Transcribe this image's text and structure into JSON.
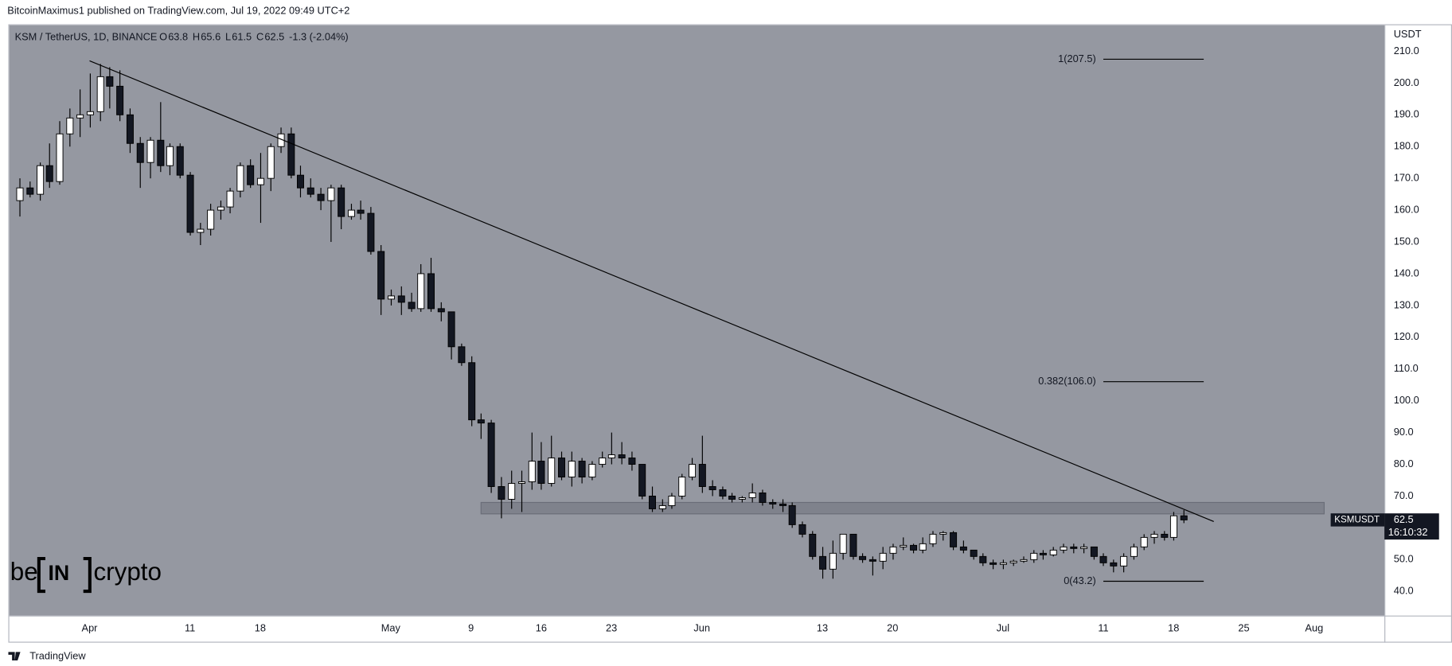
{
  "chart_data": {
    "type": "candlestick",
    "header": "BitcoinMaximus1 published on TradingView.com, Jul 19, 2022 09:49 UTC+2",
    "symbol": "KSM / TetherUS, 1D, BINANCE",
    "legend_keys": [
      "O",
      "H",
      "L",
      "C"
    ],
    "change": "-1.3 (-2.04%)",
    "axis_unit": "USDT",
    "ticker": "KSMUSDT",
    "countdown": "16:10:32",
    "watermark": [
      "be",
      "IN",
      "crypto"
    ],
    "footer": "TradingView",
    "background": "#9598a1",
    "up_color": "#ffffff",
    "down_color": "#131722",
    "wick_color": "#000000",
    "x": [
      "2022-03-25",
      "2022-03-26",
      "2022-03-27",
      "2022-03-28",
      "2022-03-29",
      "2022-03-30",
      "2022-03-31",
      "2022-04-01",
      "2022-04-02",
      "2022-04-03",
      "2022-04-04",
      "2022-04-05",
      "2022-04-06",
      "2022-04-07",
      "2022-04-08",
      "2022-04-09",
      "2022-04-10",
      "2022-04-11",
      "2022-04-12",
      "2022-04-13",
      "2022-04-14",
      "2022-04-15",
      "2022-04-16",
      "2022-04-17",
      "2022-04-18",
      "2022-04-19",
      "2022-04-20",
      "2022-04-21",
      "2022-04-22",
      "2022-04-23",
      "2022-04-24",
      "2022-04-25",
      "2022-04-26",
      "2022-04-27",
      "2022-04-28",
      "2022-04-29",
      "2022-04-30",
      "2022-05-01",
      "2022-05-02",
      "2022-05-03",
      "2022-05-04",
      "2022-05-05",
      "2022-05-06",
      "2022-05-07",
      "2022-05-08",
      "2022-05-09",
      "2022-05-10",
      "2022-05-11",
      "2022-05-12",
      "2022-05-13",
      "2022-05-14",
      "2022-05-15",
      "2022-05-16",
      "2022-05-17",
      "2022-05-18",
      "2022-05-19",
      "2022-05-20",
      "2022-05-21",
      "2022-05-22",
      "2022-05-23",
      "2022-05-24",
      "2022-05-25",
      "2022-05-26",
      "2022-05-27",
      "2022-05-28",
      "2022-05-29",
      "2022-05-30",
      "2022-05-31",
      "2022-06-01",
      "2022-06-02",
      "2022-06-03",
      "2022-06-04",
      "2022-06-05",
      "2022-06-06",
      "2022-06-07",
      "2022-06-08",
      "2022-06-09",
      "2022-06-10",
      "2022-06-11",
      "2022-06-12",
      "2022-06-13",
      "2022-06-14",
      "2022-06-15",
      "2022-06-16",
      "2022-06-17",
      "2022-06-18",
      "2022-06-19",
      "2022-06-20",
      "2022-06-21",
      "2022-06-22",
      "2022-06-23",
      "2022-06-24",
      "2022-06-25",
      "2022-06-26",
      "2022-06-27",
      "2022-06-28",
      "2022-06-29",
      "2022-06-30",
      "2022-07-01",
      "2022-07-02",
      "2022-07-03",
      "2022-07-04",
      "2022-07-05",
      "2022-07-06",
      "2022-07-07",
      "2022-07-08",
      "2022-07-09",
      "2022-07-10",
      "2022-07-11",
      "2022-07-12",
      "2022-07-13",
      "2022-07-14",
      "2022-07-15",
      "2022-07-16",
      "2022-07-17",
      "2022-07-18",
      "2022-07-19"
    ],
    "open": [
      163,
      167,
      165,
      174,
      169,
      184,
      189,
      190,
      191,
      202,
      199,
      190,
      181,
      175,
      182,
      174,
      180,
      171,
      153,
      154,
      160,
      161,
      166,
      174,
      168,
      170,
      180,
      184,
      171,
      167,
      165,
      163,
      167,
      158,
      160,
      159,
      147,
      132,
      133,
      131,
      129,
      140,
      129,
      128,
      117,
      112,
      94,
      93,
      73,
      69,
      74,
      74.5,
      81,
      74,
      82,
      76,
      81,
      76,
      80,
      82,
      83,
      82,
      80,
      70,
      66,
      67,
      70,
      76,
      80,
      73,
      72,
      70,
      69,
      69.5,
      71,
      68,
      67.5,
      67,
      61,
      58,
      51,
      47,
      52,
      58,
      51,
      50,
      49.5,
      52,
      54,
      54.5,
      53,
      55,
      58,
      58.5,
      54,
      53,
      51,
      49,
      48.5,
      49,
      49.5,
      50,
      52,
      51.5,
      53,
      54,
      53.5,
      54,
      51,
      49,
      48,
      51,
      54,
      57,
      58,
      57,
      63.8
    ],
    "high": [
      170,
      169,
      175,
      181,
      188,
      192,
      198,
      203,
      206,
      205,
      204,
      192,
      183,
      183,
      194,
      181,
      181,
      172,
      156,
      162,
      163,
      167,
      175,
      176,
      178,
      181,
      186,
      186,
      174,
      170,
      167,
      168,
      168,
      162,
      163,
      161,
      149,
      135,
      136,
      134,
      143,
      145,
      131,
      128,
      118,
      114,
      96,
      94,
      76,
      78,
      78,
      90,
      87,
      89,
      84,
      84,
      82,
      81,
      84,
      90,
      87,
      84,
      80,
      73,
      69,
      71,
      77,
      82,
      89,
      75,
      73,
      71,
      70,
      74,
      72,
      69,
      69,
      68,
      62,
      59,
      54,
      56,
      58,
      58,
      52,
      51,
      54,
      55,
      57,
      55,
      57,
      59,
      59,
      59,
      56,
      53,
      52,
      50,
      50,
      50,
      51,
      53,
      53,
      54,
      55,
      55,
      55,
      54,
      52,
      50,
      52,
      55,
      58,
      59,
      59,
      65,
      65.6
    ],
    "low": [
      158,
      164,
      163,
      167,
      168,
      180,
      183,
      186,
      188,
      192,
      188,
      178,
      167,
      170,
      172,
      171,
      170,
      152,
      149,
      152,
      157,
      159,
      164,
      167,
      156,
      166,
      178,
      170,
      164,
      164,
      160,
      150,
      154,
      157,
      157,
      146,
      127,
      130,
      127,
      128,
      128,
      128,
      125,
      113,
      111,
      92,
      88,
      71,
      63,
      66,
      65,
      72,
      72,
      73,
      75,
      73,
      74,
      75,
      79,
      80,
      80,
      78,
      69,
      65,
      65,
      66,
      69,
      75,
      71,
      70,
      69,
      68,
      68,
      68,
      67,
      66,
      65,
      60,
      57,
      50,
      44,
      44,
      50,
      50,
      49,
      45,
      47,
      50,
      53,
      52,
      52,
      54,
      56,
      53,
      52,
      50,
      48,
      47,
      47,
      48,
      49,
      49,
      50,
      51,
      52,
      52,
      52,
      50,
      48,
      46,
      46,
      50,
      53,
      55,
      56,
      56,
      61.5
    ],
    "close": [
      167,
      165,
      174,
      169,
      184,
      189,
      190,
      191,
      202,
      199,
      190,
      181,
      175,
      182,
      174,
      180,
      171,
      153,
      154,
      160,
      161,
      166,
      174,
      168,
      170,
      180,
      184,
      171,
      167,
      165,
      163,
      167,
      158,
      160,
      159,
      147,
      132,
      133,
      131,
      129,
      140,
      129,
      128,
      117,
      112,
      94,
      93,
      73,
      69,
      74,
      74.5,
      81,
      74,
      82,
      76,
      81,
      76,
      80,
      82,
      83,
      82,
      80,
      70,
      66,
      67,
      70,
      76,
      80,
      73,
      72,
      70,
      69,
      69.5,
      71,
      68,
      67.5,
      67,
      61,
      58,
      51,
      47,
      52,
      58,
      51,
      50,
      49.5,
      52,
      54,
      54.5,
      53,
      55,
      58,
      58.5,
      54,
      53,
      51,
      49,
      48.5,
      49,
      49.5,
      50,
      52,
      51.5,
      53,
      54,
      53.5,
      54,
      51,
      49,
      48,
      51,
      54,
      57,
      58,
      57,
      63.8,
      62.5
    ],
    "xlim": [
      "2022-03-24",
      "2022-08-08"
    ],
    "xticks": [
      {
        "value": "2022-04-01",
        "label": "Apr"
      },
      {
        "value": "2022-04-11",
        "label": "11"
      },
      {
        "value": "2022-04-18",
        "label": "18"
      },
      {
        "value": "2022-05-01",
        "label": "May"
      },
      {
        "value": "2022-05-09",
        "label": "9"
      },
      {
        "value": "2022-05-16",
        "label": "16"
      },
      {
        "value": "2022-05-23",
        "label": "23"
      },
      {
        "value": "2022-06-01",
        "label": "Jun"
      },
      {
        "value": "2022-06-13",
        "label": "13"
      },
      {
        "value": "2022-06-20",
        "label": "20"
      },
      {
        "value": "2022-07-01",
        "label": "Jul"
      },
      {
        "value": "2022-07-11",
        "label": "11"
      },
      {
        "value": "2022-07-18",
        "label": "18"
      },
      {
        "value": "2022-07-25",
        "label": "25"
      },
      {
        "value": "2022-08-01",
        "label": "Aug"
      }
    ],
    "ylim": [
      32.4,
      218.2
    ],
    "yticks": [
      {
        "value": 40,
        "label": "40.0"
      },
      {
        "value": 50,
        "label": "50.0"
      },
      {
        "value": 60,
        "label": "60.0"
      },
      {
        "value": 70,
        "label": "70.0"
      },
      {
        "value": 80,
        "label": "80.0"
      },
      {
        "value": 90,
        "label": "90.0"
      },
      {
        "value": 100,
        "label": "100.0"
      },
      {
        "value": 110,
        "label": "110.0"
      },
      {
        "value": 120,
        "label": "120.0"
      },
      {
        "value": 130,
        "label": "130.0"
      },
      {
        "value": 140,
        "label": "140.0"
      },
      {
        "value": 150,
        "label": "150.0"
      },
      {
        "value": 160,
        "label": "160.0"
      },
      {
        "value": 170,
        "label": "170.0"
      },
      {
        "value": 180,
        "label": "180.0"
      },
      {
        "value": 190,
        "label": "190.0"
      },
      {
        "value": 200,
        "label": "200.0"
      },
      {
        "value": 210,
        "label": "210.0"
      }
    ],
    "grid": false,
    "trendline": {
      "x": [
        "2022-04-01",
        "2022-07-22"
      ],
      "y": [
        207,
        62
      ]
    },
    "zone": {
      "x": [
        "2022-05-10",
        "2022-08-02"
      ],
      "y": [
        64.4,
        68
      ]
    },
    "fib_x": [
      "2022-07-11",
      "2022-07-21"
    ],
    "fib_levels": [
      {
        "value": 207.5,
        "label": "1(207.5)"
      },
      {
        "value": 106.0,
        "label": "0.382(106.0)"
      },
      {
        "value": 43.2,
        "label": "0(43.2)"
      }
    ]
  }
}
